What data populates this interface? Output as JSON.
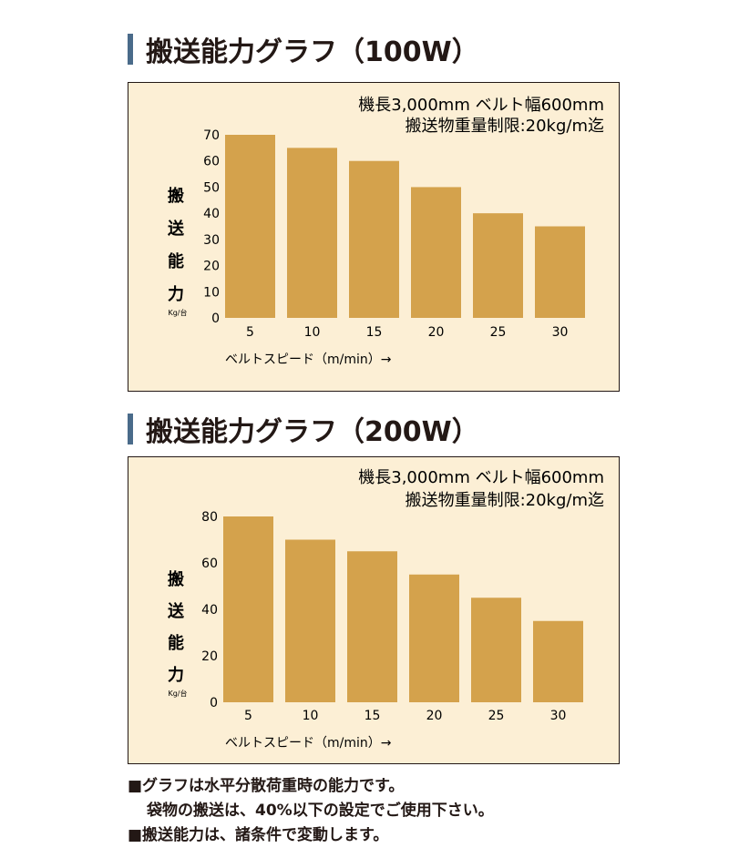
{
  "colors": {
    "bar": "#D4A24C",
    "panel_bg": "#FCEFD5",
    "title_accent": "#4A6B8A",
    "text": "#231815"
  },
  "charts": [
    {
      "heading": "搬送能力グラフ（100W）",
      "spec_line1": "機長3,000mm ベルト幅600mm",
      "spec_line2": "搬送物重量制限:20kg/m迄",
      "ylabel_chars": [
        "搬",
        "送",
        "能",
        "力"
      ],
      "ylabel_unit": "Kg/台",
      "xlabel": "ベルトスピード（m/min）→",
      "y_ticks": [
        "0",
        "10",
        "20",
        "30",
        "40",
        "50",
        "60",
        "70"
      ],
      "chart_data": {
        "type": "bar",
        "title": "搬送能力グラフ（100W）",
        "categories": [
          "5",
          "10",
          "15",
          "20",
          "25",
          "30"
        ],
        "values": [
          70,
          65,
          60,
          50,
          40,
          35
        ],
        "xlabel": "ベルトスピード（m/min）→",
        "ylabel": "搬送能力 Kg/台",
        "ylim": [
          0,
          70
        ],
        "grid": false
      }
    },
    {
      "heading": "搬送能力グラフ（200W）",
      "spec_line1": "機長3,000mm ベルト幅600mm",
      "spec_line2": "搬送物重量制限:20kg/m迄",
      "ylabel_chars": [
        "搬",
        "送",
        "能",
        "力"
      ],
      "ylabel_unit": "Kg/台",
      "xlabel": "ベルトスピード（m/min）→",
      "y_ticks": [
        "0",
        "20",
        "40",
        "60",
        "80"
      ],
      "chart_data": {
        "type": "bar",
        "title": "搬送能力グラフ（200W）",
        "categories": [
          "5",
          "10",
          "15",
          "20",
          "25",
          "30"
        ],
        "values": [
          80,
          70,
          65,
          55,
          45,
          35
        ],
        "xlabel": "ベルトスピード（m/min）→",
        "ylabel": "搬送能力 Kg/台",
        "ylim": [
          0,
          80
        ],
        "grid": false
      }
    }
  ],
  "notes": {
    "line1": "■グラフは水平分散荷重時の能力です。",
    "line2": "袋物の搬送は、40%以下の設定でご使用下さい。",
    "line3": "■搬送能力は、諸条件で変動します。"
  }
}
